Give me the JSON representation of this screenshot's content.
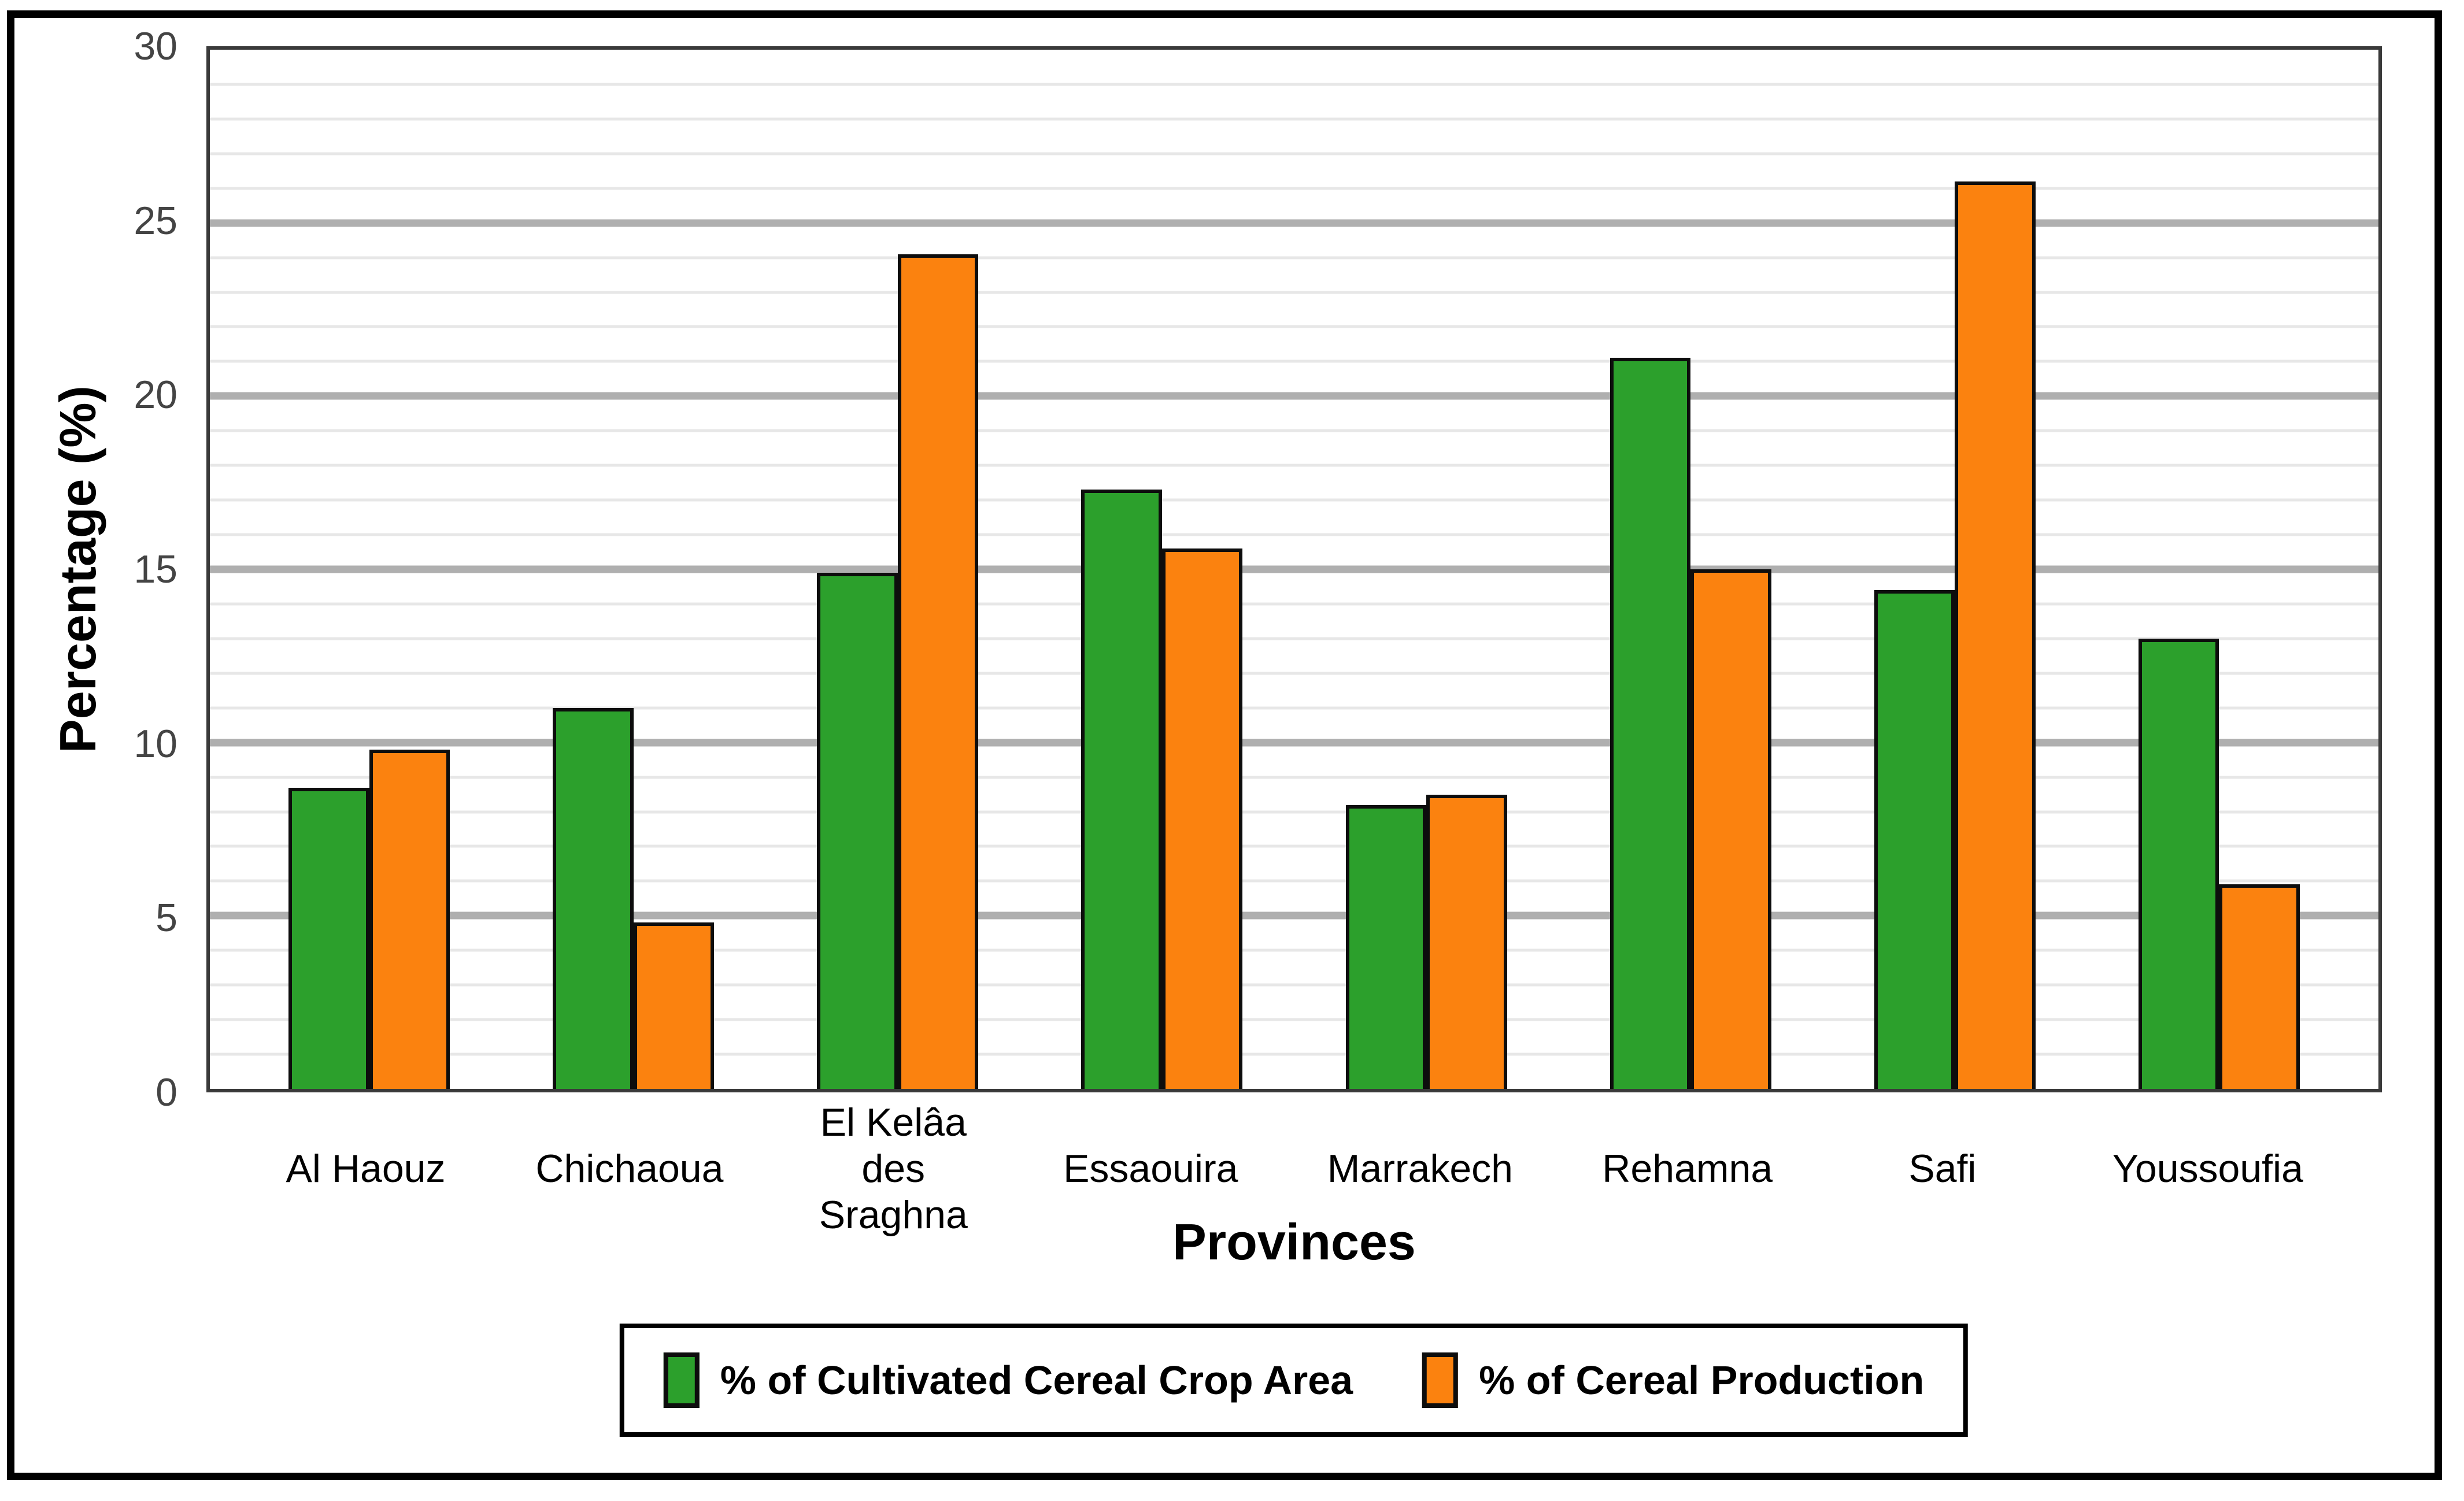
{
  "chart_data": {
    "type": "bar",
    "categories": [
      "Al Haouz",
      "Chichaoua",
      "El Kelâa\ndes Sraghna",
      "Essaouira",
      "Marrakech",
      "Rehamna",
      "Safi",
      "Youssoufia"
    ],
    "series": [
      {
        "name": "% of Cultivated Cereal Crop Area",
        "color": "#2CA02C",
        "values": [
          8.7,
          11.0,
          14.9,
          17.3,
          8.2,
          21.1,
          14.4,
          13.0
        ]
      },
      {
        "name": "% of Cereal Production",
        "color": "#FB820F",
        "values": [
          9.8,
          4.8,
          24.1,
          15.6,
          8.5,
          15.0,
          26.2,
          5.9
        ]
      }
    ],
    "xlabel": "Provinces",
    "ylabel": "Percentage (%)",
    "ylim": [
      0,
      30
    ],
    "yticks": [
      0,
      5,
      10,
      15,
      20,
      25,
      30
    ],
    "minor_grid_step": 1,
    "major_grid_step": 5,
    "grid": true,
    "legend_position": "bottom",
    "colors": {
      "minor_grid": "#E7E7E7",
      "major_grid": "#AFAFAF",
      "spine": "#3A3A3A",
      "bar_border": "#0D0D0D",
      "tick_label": "#444444",
      "figure_border": "#000000"
    }
  }
}
